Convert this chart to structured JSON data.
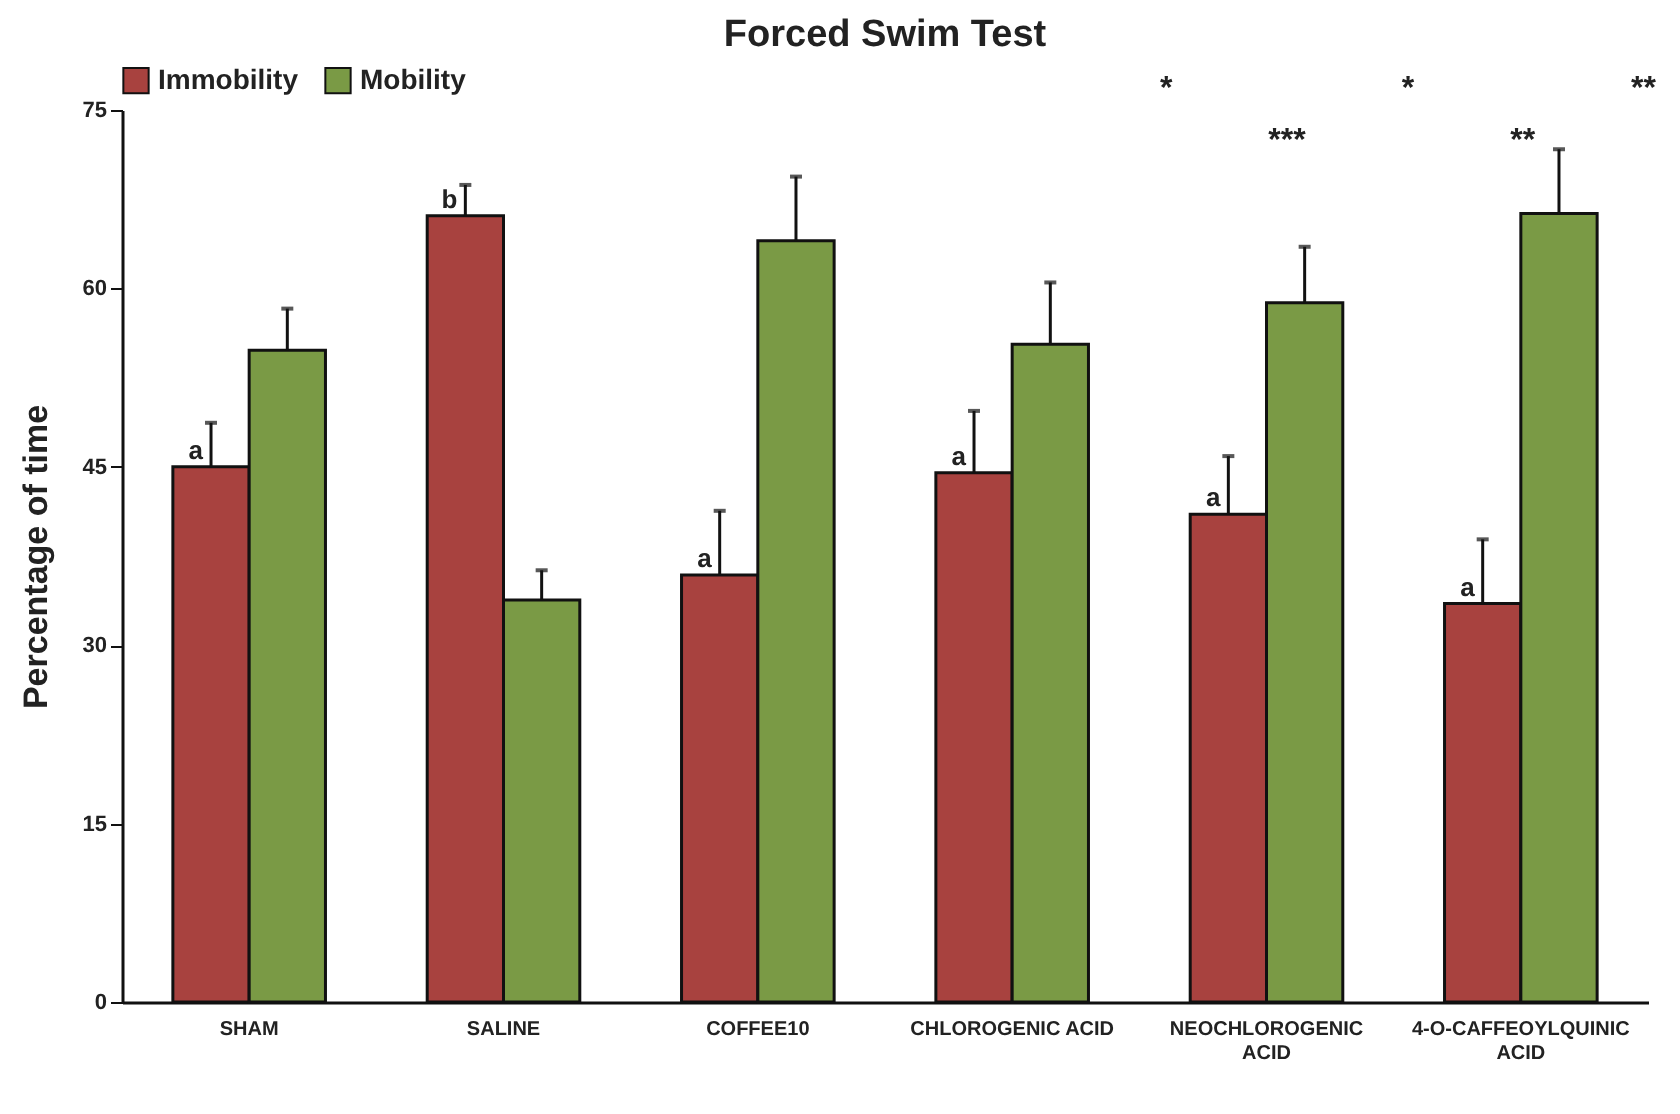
{
  "chart_data": {
    "type": "bar",
    "title": "Forced Swim Test",
    "ylabel": "Percentage of time",
    "categories": [
      "SHAM",
      "SALINE",
      "COFFEE10",
      "CHLOROGENIC ACID",
      "NEOCHLOROGENIC ACID",
      "4-O-CAFFEOYLQUINIC ACID"
    ],
    "series": [
      {
        "name": "Immobility",
        "color": "#a8423f",
        "values": [
          45.0,
          66.1,
          35.9,
          44.5,
          41.0,
          33.5
        ],
        "errors": [
          [
            45.0,
            48.7
          ],
          [
            66.1,
            68.7
          ],
          [
            35.9,
            41.3
          ],
          [
            44.5,
            49.7
          ],
          [
            41.0,
            45.9
          ],
          [
            33.5,
            38.9
          ]
        ],
        "value_labels": [
          "a",
          "b",
          "a",
          "a",
          "a",
          "a"
        ]
      },
      {
        "name": "Mobility",
        "color": "#7a9a45",
        "values": [
          54.8,
          33.8,
          64.0,
          55.3,
          58.8,
          66.3
        ],
        "errors": [
          [
            54.8,
            58.3
          ],
          [
            33.8,
            36.3
          ],
          [
            64.0,
            69.4
          ],
          [
            55.3,
            60.5
          ],
          [
            58.8,
            63.5
          ],
          [
            66.3,
            71.7
          ]
        ]
      }
    ],
    "ylim": [
      0,
      75
    ],
    "yticks": [
      0,
      15,
      30,
      45,
      60,
      75
    ],
    "grid": false,
    "legend": "top",
    "annotations": [
      "*",
      "***",
      "*",
      "**",
      "**"
    ]
  }
}
